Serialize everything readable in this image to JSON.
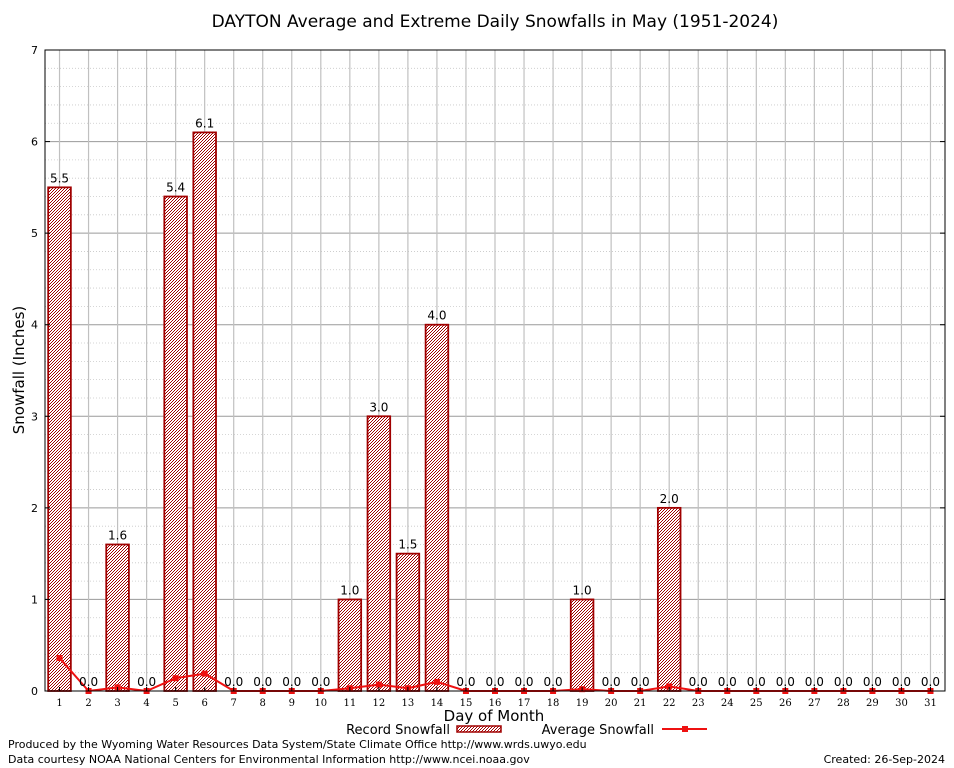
{
  "chart_data": {
    "type": "bar",
    "title": "DAYTON Average and Extreme Daily Snowfalls in May (1951-2024)",
    "xlabel": "Day of Month",
    "ylabel": "Snowfall (Inches)",
    "ylim": [
      0,
      7
    ],
    "yticks": [
      0,
      1,
      2,
      3,
      4,
      5,
      6,
      7
    ],
    "categories": [
      "1",
      "2",
      "3",
      "4",
      "5",
      "6",
      "7",
      "8",
      "9",
      "10",
      "11",
      "12",
      "13",
      "14",
      "15",
      "16",
      "17",
      "18",
      "19",
      "20",
      "21",
      "22",
      "23",
      "24",
      "25",
      "26",
      "27",
      "28",
      "29",
      "30",
      "31"
    ],
    "series": [
      {
        "name": "Record Snowfall",
        "type": "bar",
        "values": [
          5.5,
          0,
          1.6,
          0,
          5.4,
          6.1,
          0,
          0,
          0,
          0,
          1.0,
          3.0,
          1.5,
          4.0,
          0,
          0,
          0,
          0,
          1.0,
          0,
          0,
          2.0,
          0,
          0,
          0,
          0,
          0,
          0,
          0,
          0,
          0
        ],
        "labels": [
          "5.5",
          "0.0",
          "1.6",
          "0.0",
          "5.4",
          "6.1",
          "0.0",
          "0.0",
          "0.0",
          "0.0",
          "1.0",
          "3.0",
          "1.5",
          "4.0",
          "0.0",
          "0.0",
          "0.0",
          "0.0",
          "1.0",
          "0.0",
          "0.0",
          "2.0",
          "0.0",
          "0.0",
          "0.0",
          "0.0",
          "0.0",
          "0.0",
          "0.0",
          "0.0",
          "0.0"
        ]
      },
      {
        "name": "Average Snowfall",
        "type": "line",
        "values": [
          0.36,
          0.0,
          0.04,
          0.0,
          0.14,
          0.19,
          0.0,
          0.0,
          0.0,
          0.0,
          0.03,
          0.07,
          0.03,
          0.1,
          0,
          0,
          0,
          0,
          0.02,
          0,
          0,
          0.05,
          0,
          0,
          0,
          0,
          0,
          0,
          0,
          0,
          0
        ]
      }
    ],
    "grid": true,
    "legend_position": "bottom-center"
  },
  "colors": {
    "bar_fill": "#f2dede",
    "bar_edge": "#a00000",
    "avg_line": "#ee1111",
    "grid": "#c0c0c0"
  },
  "footer": {
    "produced_by": "Produced by the Wyoming Water Resources Data System/State Climate Office http://www.wrds.uwyo.edu",
    "data_courtesy": "Data courtesy NOAA National Centers for Environmental Information http://www.ncei.noaa.gov",
    "created": "Created:  26-Sep-2024"
  }
}
